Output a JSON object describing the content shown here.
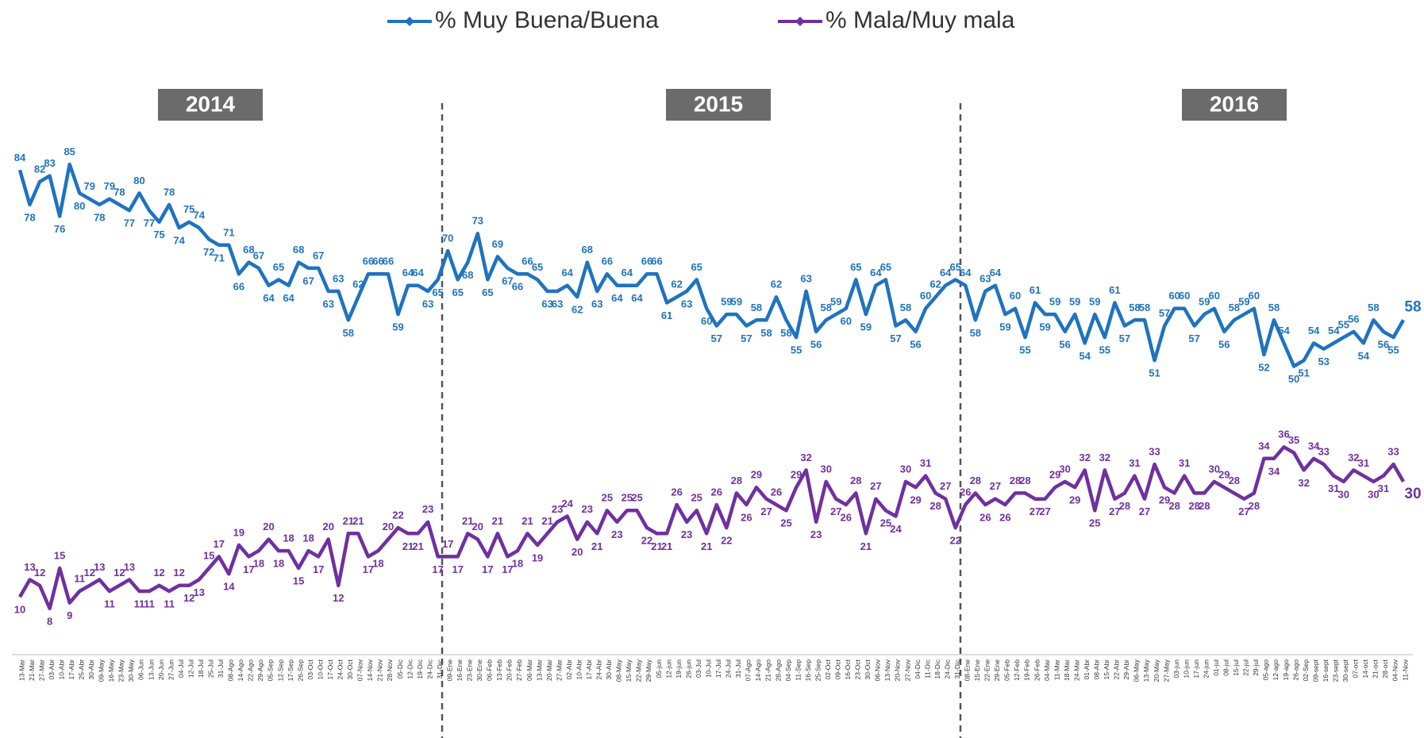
{
  "chart_data": {
    "type": "line",
    "year_labels": [
      "2014",
      "2015",
      "2016"
    ],
    "categories": [
      "13-Mar",
      "21-Mar",
      "27-Mar",
      "03-Abr",
      "10-Abr",
      "17-Abr",
      "25-Abr",
      "30-Abr",
      "09-May",
      "16-May",
      "23-May",
      "30-May",
      "06-Jun",
      "13-Jun",
      "20-Jun",
      "27-Jun",
      "04-Jul",
      "12-Jul",
      "18-Jul",
      "25-Jul",
      "31-Jul",
      "08-Ago",
      "14-Ago",
      "22-Ago",
      "29-Ago",
      "05-Sep",
      "12-Sep",
      "17-Sep",
      "26-Sep",
      "03-Oct",
      "10-Oct",
      "17-Oct",
      "24-Oct",
      "30-Oct",
      "07-Nov",
      "14-Nov",
      "21-Nov",
      "28-Nov",
      "05-Dic",
      "12-Dic",
      "19-Dic",
      "24-Dic",
      "31-Dic",
      "09-Ene",
      "16-Ene",
      "23-Ene",
      "30-Ene",
      "06-Feb",
      "13-Feb",
      "20-Feb",
      "27-Feb",
      "06-Mar",
      "13-Mar",
      "20-Mar",
      "27-Mar",
      "02-Abr",
      "10-Abr",
      "17-Abr",
      "24-Abr",
      "30-Abr",
      "08-May",
      "15-May",
      "22-May",
      "29-May",
      "05-jun",
      "12-jun",
      "19-jun",
      "26-jun",
      "03-Jul",
      "10-Jul",
      "17-Jul",
      "24-Jul",
      "31-Jul",
      "07-Ago",
      "14-Ago",
      "21-Ago",
      "28-Ago",
      "04-Sep",
      "11-Sep",
      "16-Sep",
      "25-Sep",
      "02-Oct",
      "09-Oct",
      "16-Oct",
      "23-Oct",
      "30-Oct",
      "06-Nov",
      "13-Nov",
      "20-Nov",
      "27-Nov",
      "04-Dic",
      "11-Dic",
      "18-Dic",
      "24-Dic",
      "31-Dic",
      "08-Ene",
      "15-Ene",
      "22-Ene",
      "29-Ene",
      "05-Feb",
      "12-Feb",
      "19-Feb",
      "26-Feb",
      "04-Mar",
      "11-Mar",
      "18-Mar",
      "24-Mar",
      "01-Abr",
      "08-Abr",
      "15-Abr",
      "22-Abr",
      "29-Abr",
      "06-May",
      "13-May",
      "20-May",
      "27-May",
      "03-jun",
      "10-jun",
      "17-jun",
      "24-jun",
      "01-jul",
      "08-jul",
      "15-jul",
      "22-jul",
      "29-jul",
      "05-ago",
      "12-ago",
      "19-ago",
      "26-ago",
      "02-Sep",
      "09-sept",
      "16-sept",
      "23-sept",
      "30-sept",
      "07-oct",
      "14-oct",
      "21-oct",
      "28-oct",
      "04-Nov",
      "11-Nov"
    ],
    "series": [
      {
        "name": "% Muy Buena/Buena",
        "color": "#1f73c0",
        "values": [
          84,
          78,
          82,
          83,
          76,
          85,
          80,
          79,
          78,
          79,
          78,
          77,
          80,
          77,
          75,
          78,
          74,
          75,
          74,
          72,
          71,
          71,
          66,
          68,
          67,
          64,
          65,
          64,
          68,
          67,
          67,
          63,
          63,
          58,
          62,
          66,
          66,
          66,
          59,
          64,
          64,
          63,
          65,
          70,
          65,
          68,
          73,
          65,
          69,
          67,
          66,
          66,
          65,
          63,
          63,
          64,
          62,
          68,
          63,
          66,
          64,
          64,
          64,
          66,
          66,
          61,
          62,
          63,
          65,
          60,
          57,
          59,
          59,
          57,
          58,
          58,
          62,
          58,
          55,
          63,
          56,
          58,
          59,
          60,
          65,
          59,
          64,
          65,
          57,
          58,
          56,
          60,
          62,
          64,
          65,
          64,
          58,
          63,
          64,
          59,
          60,
          55,
          61,
          59,
          59,
          56,
          59,
          54,
          59,
          55,
          61,
          57,
          58,
          58,
          51,
          57,
          60,
          60,
          57,
          59,
          60,
          56,
          58,
          59,
          60,
          52,
          58,
          54,
          50,
          51,
          54,
          53,
          54,
          55,
          56,
          54,
          58,
          56,
          55,
          58
        ]
      },
      {
        "name": "% Mala/Muy mala",
        "color": "#7030a0",
        "values": [
          10,
          13,
          12,
          8,
          15,
          9,
          11,
          12,
          13,
          11,
          12,
          13,
          11,
          11,
          12,
          11,
          12,
          12,
          13,
          15,
          17,
          14,
          19,
          17,
          18,
          20,
          18,
          18,
          15,
          18,
          17,
          20,
          12,
          21,
          21,
          17,
          18,
          20,
          22,
          21,
          21,
          23,
          17,
          17,
          17,
          21,
          20,
          17,
          21,
          17,
          18,
          21,
          19,
          21,
          23,
          24,
          20,
          23,
          21,
          25,
          23,
          25,
          25,
          22,
          21,
          21,
          26,
          23,
          25,
          21,
          26,
          22,
          28,
          26,
          29,
          27,
          26,
          25,
          29,
          32,
          23,
          30,
          27,
          26,
          28,
          21,
          27,
          25,
          24,
          30,
          29,
          31,
          28,
          27,
          22,
          26,
          28,
          26,
          27,
          26,
          28,
          28,
          27,
          27,
          29,
          30,
          29,
          32,
          25,
          32,
          27,
          28,
          31,
          27,
          33,
          29,
          28,
          31,
          28,
          28,
          30,
          29,
          28,
          27,
          28,
          34,
          34,
          36,
          35,
          32,
          34,
          33,
          31,
          30,
          32,
          31,
          30,
          31,
          33,
          30
        ]
      }
    ],
    "ylim": [
      0,
      100
    ]
  }
}
